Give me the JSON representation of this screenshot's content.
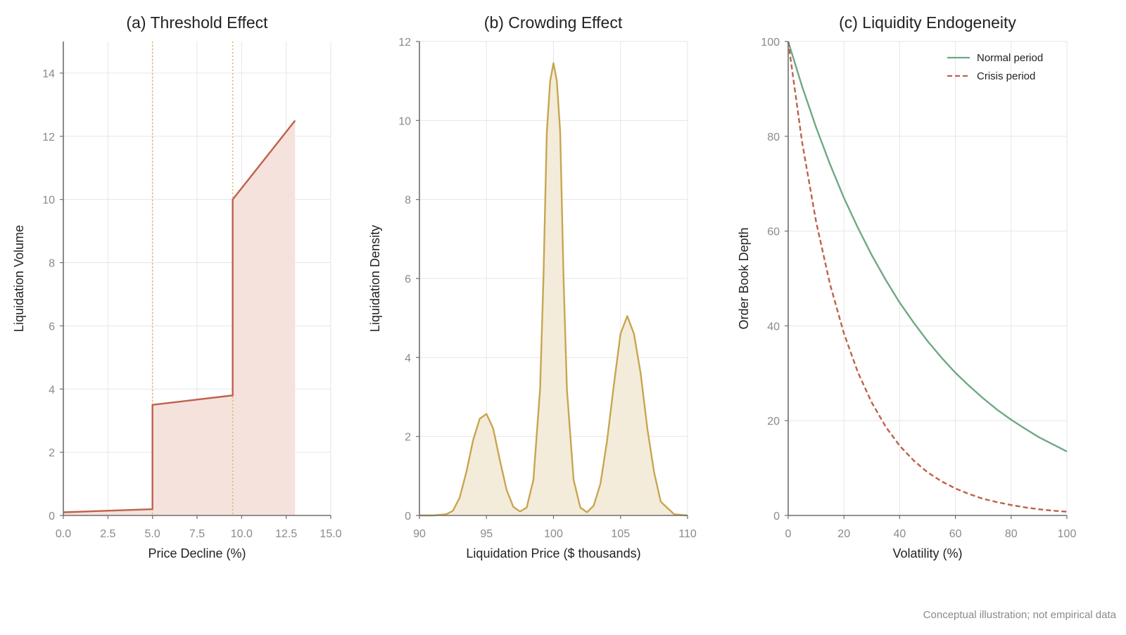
{
  "figure": {
    "footnote": "Conceptual illustration; not empirical data"
  },
  "chart_data": [
    {
      "id": "a",
      "type": "area",
      "title": "(a) Threshold Effect",
      "xlabel": "Price Decline (%)",
      "ylabel": "Liquidation Volume",
      "xlim": [
        0,
        15
      ],
      "ylim": [
        0,
        15
      ],
      "xticks": [
        0,
        2.5,
        5,
        7.5,
        10,
        12.5,
        15
      ],
      "xtick_labels": [
        "0.0",
        "2.5",
        "5.0",
        "7.5",
        "10.0",
        "12.5",
        "15.0"
      ],
      "yticks": [
        0,
        2,
        4,
        6,
        8,
        10,
        12,
        14
      ],
      "ytick_labels": [
        "0",
        "2",
        "4",
        "6",
        "8",
        "10",
        "12",
        "14"
      ],
      "grid": true,
      "threshold_lines": [
        5.0,
        9.5
      ],
      "threshold_color": "#e0b45c",
      "series": [
        {
          "color": "#c0604a",
          "fill": "#f5e2dd",
          "x": [
            0,
            5.0,
            5.0,
            9.5,
            9.5,
            13.0
          ],
          "y": [
            0.1,
            0.2,
            3.5,
            3.8,
            10.0,
            12.5
          ]
        }
      ]
    },
    {
      "id": "b",
      "type": "area",
      "title": "(b) Crowding Effect",
      "xlabel": "Liquidation Price ($ thousands)",
      "ylabel": "Liquidation Density",
      "xlim": [
        90,
        110
      ],
      "ylim": [
        0,
        12
      ],
      "xticks": [
        90,
        95,
        100,
        105,
        110
      ],
      "xtick_labels": [
        "90",
        "95",
        "100",
        "105",
        "110"
      ],
      "yticks": [
        0,
        2,
        4,
        6,
        8,
        10,
        12
      ],
      "ytick_labels": [
        "0",
        "2",
        "4",
        "6",
        "8",
        "10",
        "12"
      ],
      "grid": true,
      "series": [
        {
          "color": "#c8a550",
          "fill": "#f4ecda",
          "x": [
            90,
            91,
            92,
            92.5,
            93,
            93.5,
            94,
            94.5,
            95,
            95.5,
            96,
            96.5,
            97,
            97.5,
            98,
            98.5,
            99,
            99.25,
            99.5,
            99.75,
            100,
            100.25,
            100.5,
            100.75,
            101,
            101.5,
            102,
            102.5,
            103,
            103.5,
            104,
            104.5,
            105,
            105.5,
            106,
            106.5,
            107,
            107.5,
            108,
            109,
            110
          ],
          "y": [
            0.0,
            0.0,
            0.03,
            0.12,
            0.45,
            1.1,
            1.9,
            2.45,
            2.57,
            2.2,
            1.4,
            0.65,
            0.22,
            0.1,
            0.2,
            0.9,
            3.2,
            6.0,
            9.7,
            11.0,
            11.45,
            11.0,
            9.7,
            6.0,
            3.2,
            0.9,
            0.2,
            0.08,
            0.25,
            0.8,
            1.9,
            3.3,
            4.6,
            5.05,
            4.6,
            3.6,
            2.2,
            1.1,
            0.35,
            0.03,
            0.0
          ]
        }
      ]
    },
    {
      "id": "c",
      "type": "line",
      "title": "(c) Liquidity Endogeneity",
      "xlabel": "Volatility (%)",
      "ylabel": "Order Book Depth",
      "xlim": [
        0,
        100
      ],
      "ylim": [
        0,
        100
      ],
      "xticks": [
        0,
        20,
        40,
        60,
        80,
        100
      ],
      "xtick_labels": [
        "0",
        "20",
        "40",
        "60",
        "80",
        "100"
      ],
      "yticks": [
        0,
        20,
        40,
        60,
        80,
        100
      ],
      "ytick_labels": [
        "0",
        "20",
        "40",
        "60",
        "80",
        "100"
      ],
      "grid": true,
      "legend": "top-right",
      "series": [
        {
          "name": "Normal period",
          "color": "#6fa884",
          "dash": false,
          "x": [
            0,
            5,
            10,
            15,
            20,
            25,
            30,
            35,
            40,
            45,
            50,
            55,
            60,
            65,
            70,
            75,
            80,
            85,
            90,
            95,
            100
          ],
          "y": [
            100,
            90.5,
            81.9,
            74.1,
            67.0,
            60.7,
            54.9,
            49.7,
            44.9,
            40.7,
            36.8,
            33.3,
            30.1,
            27.3,
            24.7,
            22.3,
            20.2,
            18.3,
            16.5,
            15.0,
            13.5
          ]
        },
        {
          "name": "Crisis period",
          "color": "#c0604a",
          "dash": true,
          "x": [
            0,
            5,
            10,
            15,
            20,
            25,
            30,
            35,
            40,
            45,
            50,
            55,
            60,
            65,
            70,
            75,
            80,
            85,
            90,
            95,
            100
          ],
          "y": [
            100,
            78.7,
            62.0,
            48.8,
            38.4,
            30.2,
            23.8,
            18.7,
            14.7,
            11.6,
            9.1,
            7.2,
            5.7,
            4.5,
            3.5,
            2.8,
            2.2,
            1.7,
            1.3,
            1.0,
            0.8
          ]
        }
      ]
    }
  ]
}
